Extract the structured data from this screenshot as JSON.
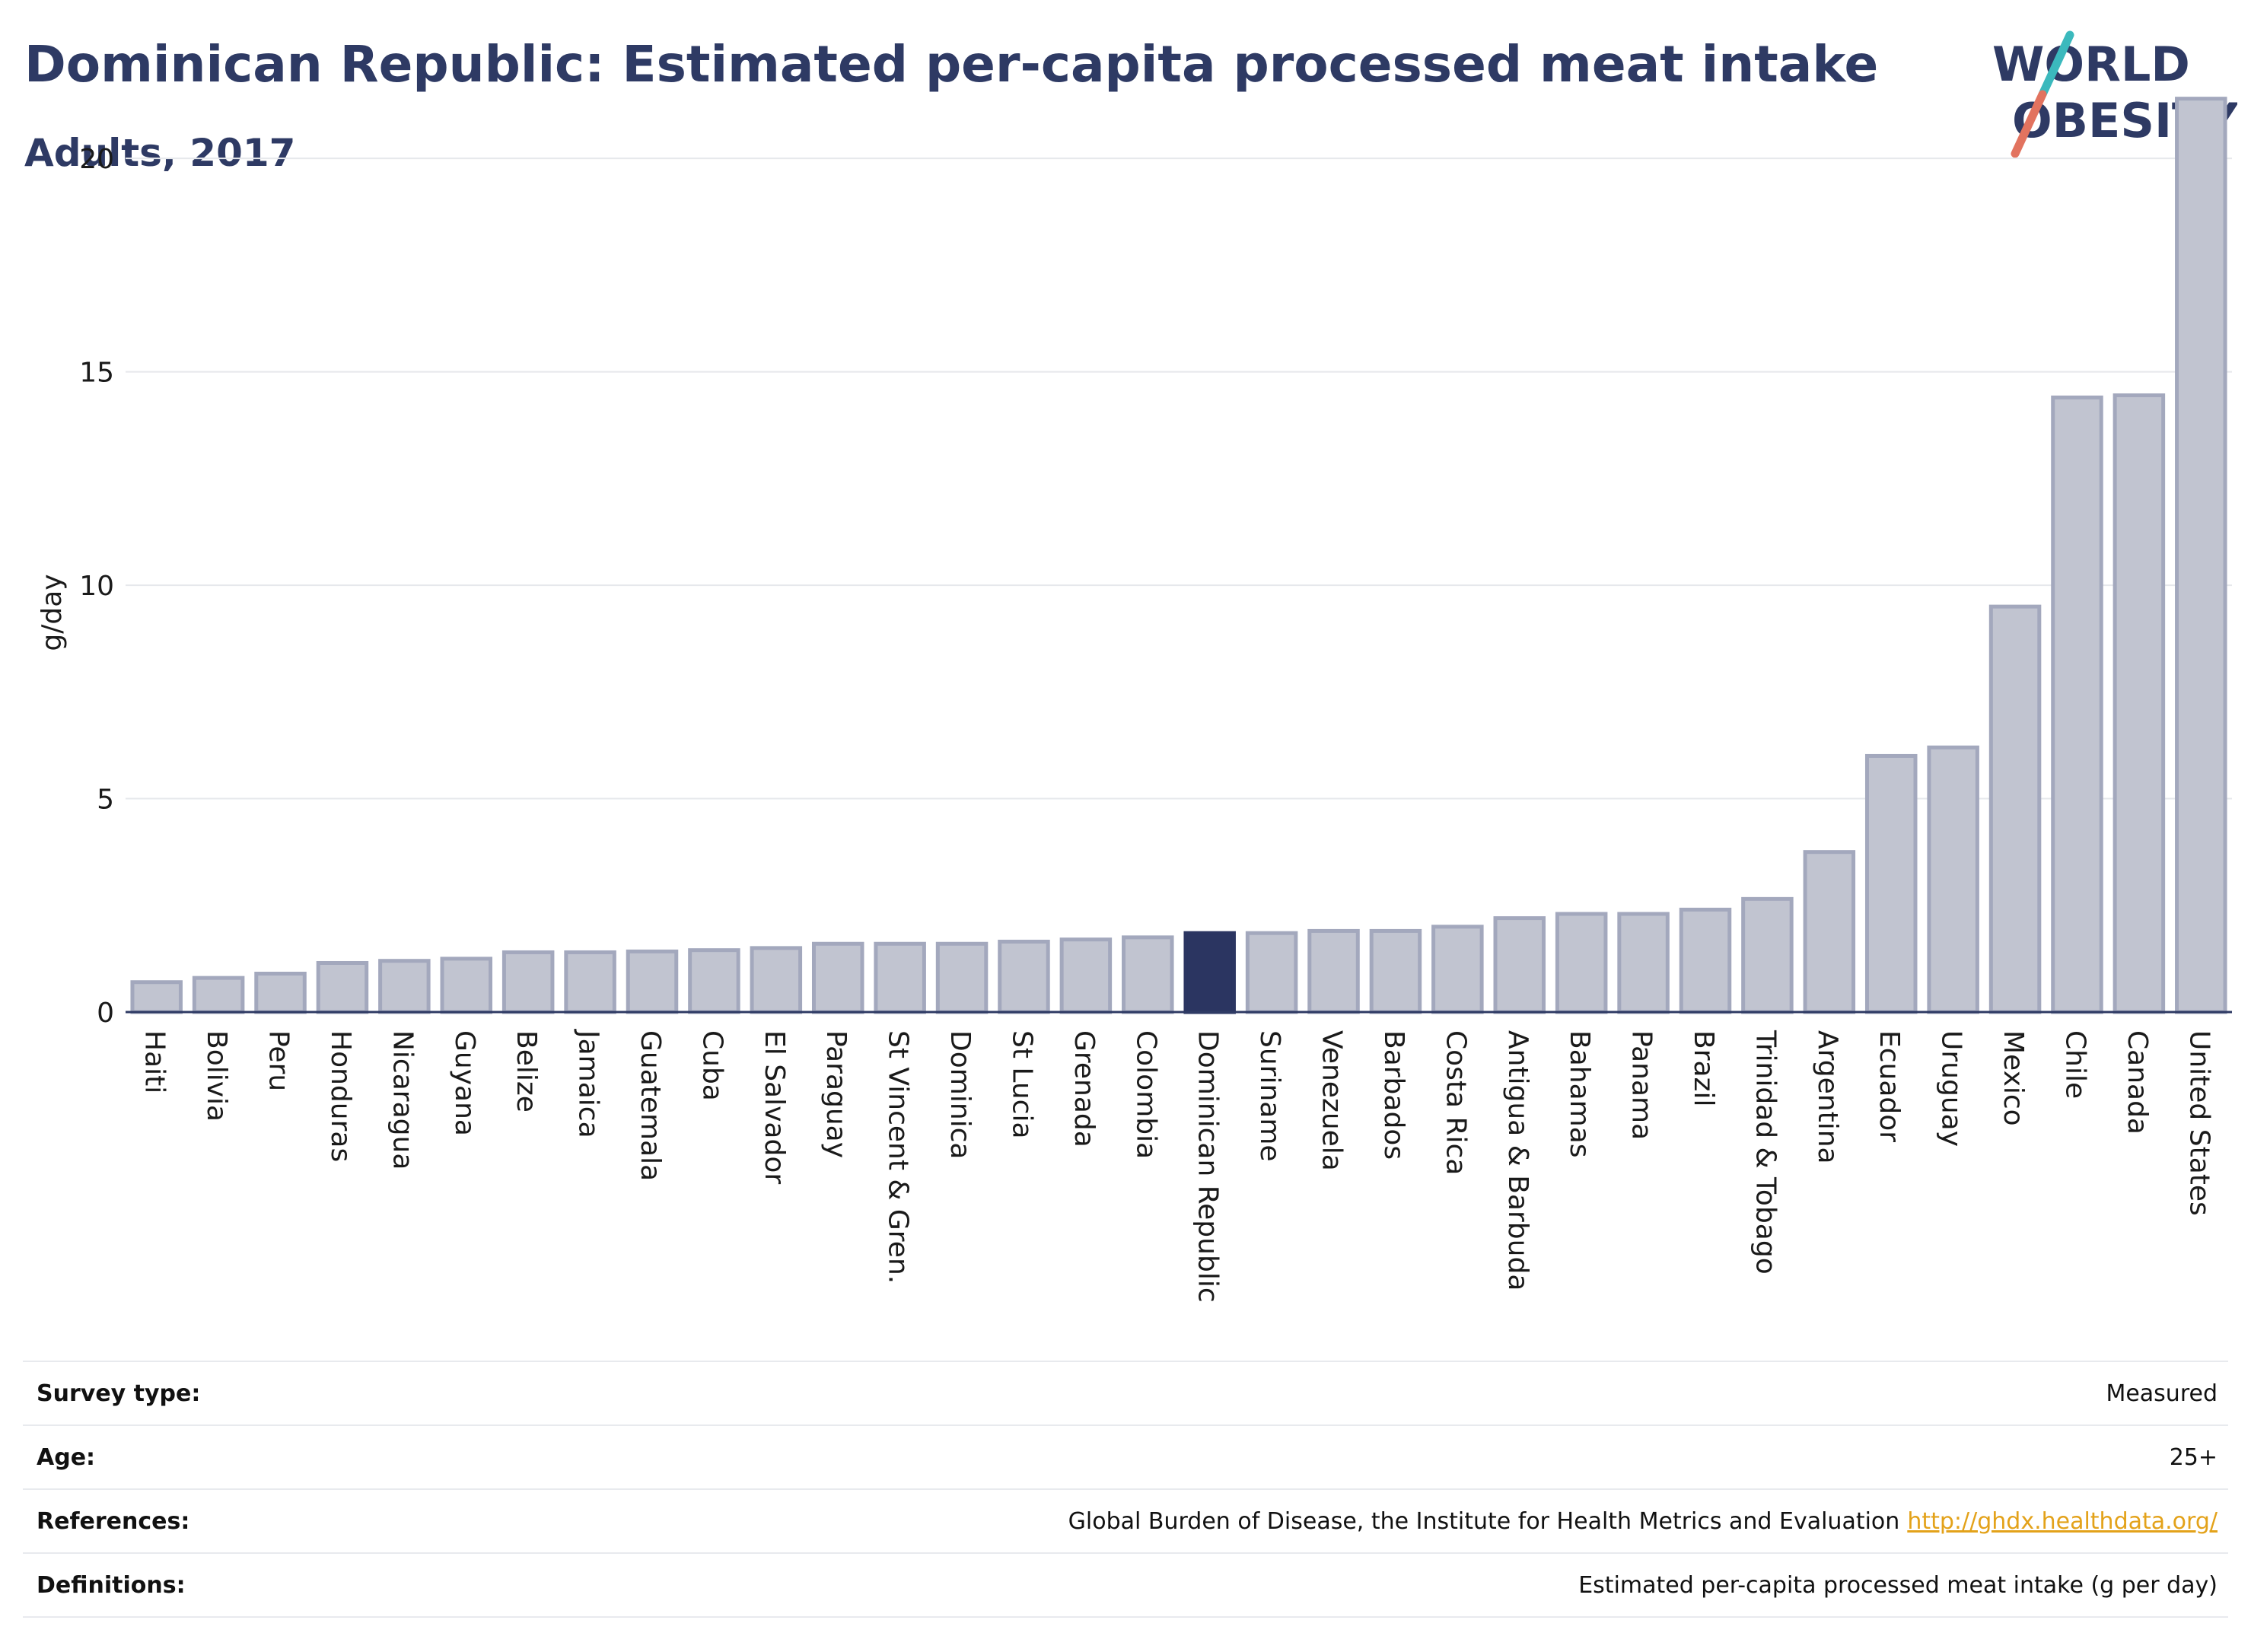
{
  "header": {
    "title": "Dominican Republic: Estimated per-capita processed meat intake",
    "subtitle": "Adults, 2017",
    "logo_line1": "WORLD",
    "logo_line2": "OBESITY"
  },
  "chart_data": {
    "type": "bar",
    "title": "Dominican Republic: Estimated per-capita processed meat intake",
    "subtitle": "Adults, 2017",
    "xlabel": "",
    "ylabel": "g/day",
    "ylim": [
      0,
      22
    ],
    "yticks": [
      0,
      5,
      10,
      15,
      20
    ],
    "grid": true,
    "highlight": "Dominican Republic",
    "categories": [
      "Haiti",
      "Bolivia",
      "Peru",
      "Honduras",
      "Nicaragua",
      "Guyana",
      "Belize",
      "Jamaica",
      "Guatemala",
      "Cuba",
      "El Salvador",
      "Paraguay",
      "St Vincent & Gren.",
      "Dominica",
      "St Lucia",
      "Grenada",
      "Colombia",
      "Dominican Republic",
      "Suriname",
      "Venezuela",
      "Barbados",
      "Costa Rica",
      "Antigua & Barbuda",
      "Bahamas",
      "Panama",
      "Brazil",
      "Trinidad & Tobago",
      "Argentina",
      "Ecuador",
      "Uruguay",
      "Mexico",
      "Chile",
      "Canada",
      "United States"
    ],
    "values": [
      0.7,
      0.8,
      0.9,
      1.15,
      1.2,
      1.25,
      1.4,
      1.4,
      1.42,
      1.45,
      1.5,
      1.6,
      1.6,
      1.6,
      1.65,
      1.7,
      1.75,
      1.85,
      1.85,
      1.9,
      1.9,
      2.0,
      2.2,
      2.3,
      2.3,
      2.4,
      2.65,
      3.75,
      6.0,
      6.2,
      9.5,
      14.4,
      14.45,
      21.4
    ]
  },
  "colors": {
    "bar": "#c1c4d0",
    "bar_edge": "#a3a8bd",
    "highlight": "#2b3561",
    "axis_text": "#1a1a1a",
    "grid": "#e6e8ec",
    "link": "#e3a21a"
  },
  "info": {
    "survey_label": "Survey type:",
    "survey_value": "Measured",
    "age_label": "Age:",
    "age_value": "25+",
    "references_label": "References:",
    "references_value": "Global Burden of Disease, the Institute for Health Metrics and Evaluation",
    "references_link": "http://ghdx.healthdata.org/",
    "definitions_label": "Definitions:",
    "definitions_value": "Estimated per-capita processed meat intake (g per day)"
  }
}
